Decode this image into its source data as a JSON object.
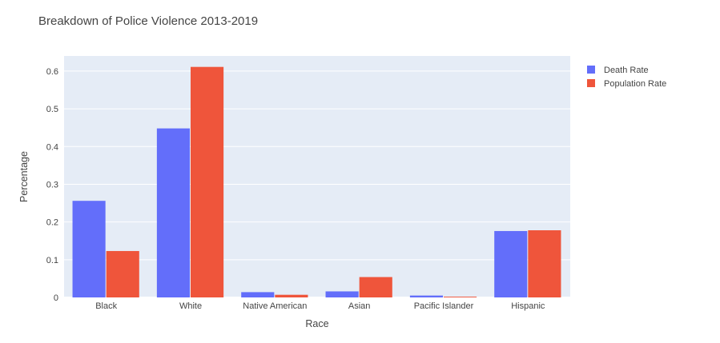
{
  "chart_data": {
    "type": "bar",
    "title": "Breakdown of Police Violence 2013-2019",
    "xlabel": "Race",
    "ylabel": "Percentage",
    "categories": [
      "Black",
      "White",
      "Native American",
      "Asian",
      "Pacific Islander",
      "Hispanic"
    ],
    "series": [
      {
        "name": "Death Rate",
        "color": "#636efa",
        "values": [
          0.256,
          0.448,
          0.014,
          0.016,
          0.005,
          0.176
        ]
      },
      {
        "name": "Population Rate",
        "color": "#ef553b",
        "values": [
          0.123,
          0.611,
          0.007,
          0.054,
          0.002,
          0.178
        ]
      }
    ],
    "ylim": [
      0,
      0.64
    ],
    "yticks": [
      0,
      0.1,
      0.2,
      0.3,
      0.4,
      0.5,
      0.6
    ],
    "ytick_labels": [
      "0",
      "0.1",
      "0.2",
      "0.3",
      "0.4",
      "0.5",
      "0.6"
    ],
    "grid": true,
    "plot_background": "#e5ecf6",
    "legend_position": "top-right"
  }
}
